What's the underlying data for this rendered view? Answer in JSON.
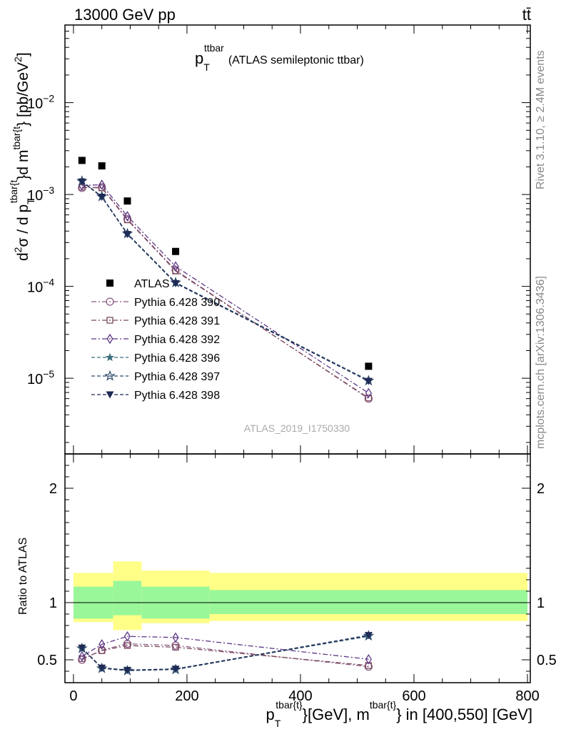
{
  "header": {
    "left": "13000 GeV pp",
    "right": "tt̄"
  },
  "side_labels": {
    "rivet": "Rivet 3.1.10, ≥ 2.4M events",
    "mcplots": "mcplots.cern.ch [arXiv:1306.3436]"
  },
  "chart_data": [
    {
      "panel": "main",
      "type": "line",
      "title_base": "p",
      "title_sub": "T",
      "title_sup": "ttbar",
      "title_rest": "(ATLAS semileptonic ttbar)",
      "watermark": "ATLAS_2019_I1750330",
      "ylabel": "d²σ / d p_T^{tbar{t}}d m^{tbar{t}} [pb/GeV²]",
      "ylabel_parts": {
        "base": "d",
        "sq1": "2",
        "mid1": "σ  /  d p",
        "sub1": "T",
        "sup1": "tbar{t",
        "mid2": "}d m",
        "sup2": "tbar{t",
        "mid3": "} [pb/GeV",
        "sq2": "2",
        "end": "]"
      },
      "yscale": "log",
      "ylim": [
        1.5e-06,
        0.07
      ],
      "xlim": [
        -15,
        805
      ],
      "ytick_labels": [
        {
          "v": 1e-05,
          "base": "10",
          "exp": "−5"
        },
        {
          "v": 0.0001,
          "base": "10",
          "exp": "−4"
        },
        {
          "v": 0.001,
          "base": "10",
          "exp": "−3"
        },
        {
          "v": 0.01,
          "base": "10",
          "exp": "−2"
        }
      ],
      "legend": {
        "placement": "center-left"
      },
      "series": [
        {
          "name": "ATLAS",
          "marker": "square",
          "color": "#000000",
          "line": "none",
          "x": [
            15,
            50,
            95,
            180,
            520
          ],
          "y": [
            0.00235,
            0.00205,
            0.00085,
            0.00024,
            1.35e-05
          ]
        },
        {
          "name": "Pythia 6.428 390",
          "marker": "circle",
          "color": "#8B5C85",
          "line": "dashdot",
          "x": [
            15,
            50,
            95,
            180,
            520
          ],
          "y": [
            0.00118,
            0.0012,
            0.00054,
            0.00015,
            6e-06
          ]
        },
        {
          "name": "Pythia 6.428 391",
          "marker": "square-open",
          "color": "#7A4A5E",
          "line": "dashdot",
          "x": [
            15,
            50,
            95,
            180,
            520
          ],
          "y": [
            0.0012,
            0.00118,
            0.00053,
            0.000147,
            6.1e-06
          ]
        },
        {
          "name": "Pythia 6.428 392",
          "marker": "diamond-open",
          "color": "#5D3686",
          "line": "dashdot",
          "x": [
            15,
            50,
            95,
            180,
            520
          ],
          "y": [
            0.00125,
            0.00128,
            0.00058,
            0.000165,
            6.9e-06
          ]
        },
        {
          "name": "Pythia 6.428 396",
          "marker": "star",
          "color": "#3F6F7E",
          "line": "dashed",
          "x": [
            15,
            50,
            95,
            180,
            520
          ],
          "y": [
            0.0014,
            0.00095,
            0.000375,
            0.00011,
            9.5e-06
          ]
        },
        {
          "name": "Pythia 6.428 397",
          "marker": "star-open",
          "color": "#2E4A6B",
          "line": "dashed",
          "x": [
            15,
            50,
            95,
            180,
            520
          ],
          "y": [
            0.0014,
            0.00095,
            0.000375,
            0.00011,
            9.4e-06
          ]
        },
        {
          "name": "Pythia 6.428 398",
          "marker": "triangle-down",
          "color": "#1F2A55",
          "line": "dashed",
          "x": [
            15,
            50,
            95,
            180,
            520
          ],
          "y": [
            0.00138,
            0.00094,
            0.00037,
            0.000108,
            9.3e-06
          ]
        }
      ]
    },
    {
      "panel": "ratio",
      "type": "line",
      "ylabel": "Ratio to ATLAS",
      "xlabel_parts": {
        "base": "p",
        "sub": "T",
        "sup1": "tbar{t}",
        "mid": "}[GeV], m",
        "sup2": "tbar{t}",
        "end": "} in [400,550] [GeV]"
      },
      "xlim": [
        -15,
        805
      ],
      "ylim": [
        0.3,
        2.3
      ],
      "xticks": [
        0,
        200,
        400,
        600,
        800
      ],
      "yticks": [
        0.5,
        1,
        2
      ],
      "bands": [
        {
          "x0": 0,
          "x1": 70,
          "inner": [
            0.86,
            1.14
          ],
          "outer": [
            0.83,
            1.26
          ]
        },
        {
          "x0": 70,
          "x1": 120,
          "inner": [
            0.89,
            1.19
          ],
          "outer": [
            0.76,
            1.36
          ]
        },
        {
          "x0": 120,
          "x1": 240,
          "inner": [
            0.86,
            1.14
          ],
          "outer": [
            0.82,
            1.28
          ]
        },
        {
          "x0": 240,
          "x1": 800,
          "inner": [
            0.9,
            1.11
          ],
          "outer": [
            0.84,
            1.26
          ]
        }
      ],
      "series": [
        {
          "name": "Pythia 6.428 390",
          "marker": "circle",
          "color": "#8B5C85",
          "line": "dashdot",
          "x": [
            15,
            50,
            95,
            180,
            520
          ],
          "y": [
            0.5,
            0.585,
            0.64,
            0.625,
            0.44
          ]
        },
        {
          "name": "Pythia 6.428 391",
          "marker": "square-open",
          "color": "#7A4A5E",
          "line": "dashdot",
          "x": [
            15,
            50,
            95,
            180,
            520
          ],
          "y": [
            0.51,
            0.58,
            0.625,
            0.61,
            0.45
          ]
        },
        {
          "name": "Pythia 6.428 392",
          "marker": "diamond-open",
          "color": "#5D3686",
          "line": "dashdot",
          "x": [
            15,
            50,
            95,
            180,
            520
          ],
          "y": [
            0.53,
            0.635,
            0.705,
            0.695,
            0.505
          ]
        },
        {
          "name": "Pythia 6.428 396",
          "marker": "star",
          "color": "#3F6F7E",
          "line": "dashed",
          "x": [
            15,
            50,
            95,
            180,
            520
          ],
          "y": [
            0.6,
            0.43,
            0.41,
            0.42,
            0.705
          ]
        },
        {
          "name": "Pythia 6.428 397",
          "marker": "star-open",
          "color": "#2E4A6B",
          "line": "dashed",
          "x": [
            15,
            50,
            95,
            180,
            520
          ],
          "y": [
            0.6,
            0.425,
            0.405,
            0.415,
            0.71
          ]
        },
        {
          "name": "Pythia 6.428 398",
          "marker": "triangle-down",
          "color": "#1F2A55",
          "line": "dashed",
          "x": [
            15,
            50,
            95,
            180,
            520
          ],
          "y": [
            0.605,
            0.43,
            0.41,
            0.42,
            0.715
          ]
        }
      ]
    }
  ],
  "colors": {
    "band_inner": "#99F799",
    "band_outer": "#FFFF88"
  }
}
